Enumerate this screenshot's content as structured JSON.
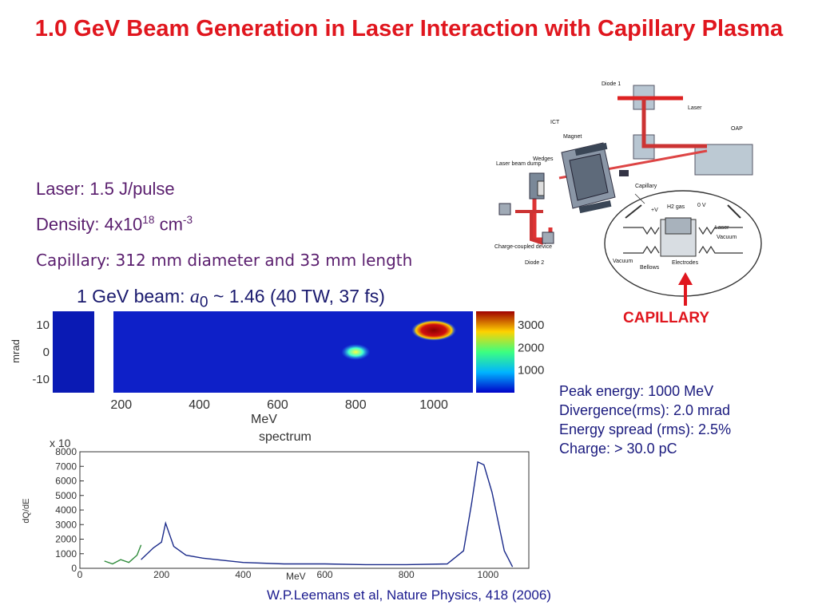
{
  "title": "1.0 GeV Beam Generation in Laser Interaction with Capillary Plasma",
  "params": {
    "laser": "Laser: 1.5 J/pulse",
    "density_prefix": "Density: 4x10",
    "density_exp": "18",
    "density_unit": " cm",
    "density_unit_exp": "-3",
    "capillary": "Capillary: 312 mm diameter and 33 mm length"
  },
  "beam": {
    "prefix": "1 GeV beam: ",
    "symbol": "a",
    "subscript": "0",
    "suffix": " ~ 1.46 (40 TW, 37 fs)"
  },
  "capillary_label": "CAPILLARY",
  "stats": [
    "Peak energy: 1000 MeV",
    "Divergence(rms): 2.0 mrad",
    "Energy spread (rms): 2.5%",
    "Charge: > 30.0 pC"
  ],
  "citation": "W.P.Leemans et al, Nature Physics, 418 (2006)",
  "diagram": {
    "labels": [
      "Diode 1",
      "Laser",
      "OAP",
      "ICT",
      "Magnet",
      "Laser beam dump",
      "Wedges",
      "Capillary",
      "Charge-coupled device",
      "Diode 2",
      "Vacuum",
      "Bellows",
      "Electrodes",
      "+V",
      "H2 gas",
      "0 V"
    ]
  },
  "chart_data": [
    {
      "type": "heatmap",
      "title": "",
      "xlabel": "MeV",
      "ylabel": "mrad",
      "x_ticks": [
        200,
        400,
        600,
        800,
        1000
      ],
      "y_ticks": [
        10,
        0,
        -10
      ],
      "colorbar_ticks": [
        3000,
        2000,
        1000
      ],
      "xlim": [
        180,
        1100
      ],
      "ylim": [
        -15,
        15
      ],
      "spots": [
        {
          "x": 1000,
          "y": 8,
          "intensity": 3500
        },
        {
          "x": 800,
          "y": 0,
          "intensity": 2200
        }
      ]
    },
    {
      "type": "line",
      "title": "spectrum",
      "xlabel": "MeV",
      "ylabel": "dQ/dE",
      "y_multiplier_label": "x 10",
      "x_ticks": [
        0,
        200,
        400,
        600,
        800,
        1000
      ],
      "y_ticks": [
        0,
        1000,
        2000,
        3000,
        4000,
        5000,
        6000,
        7000,
        8000
      ],
      "xlim": [
        0,
        1100
      ],
      "ylim": [
        0,
        8000
      ],
      "series": [
        {
          "color": "#2e8b3a",
          "x": [
            60,
            80,
            100,
            120,
            140,
            150
          ],
          "y": [
            500,
            300,
            600,
            400,
            900,
            1600
          ]
        },
        {
          "color": "#1a2a8a",
          "x": [
            150,
            180,
            200,
            210,
            230,
            260,
            300,
            400,
            500,
            600,
            700,
            800,
            900,
            940,
            960,
            975,
            990,
            1010,
            1040,
            1060
          ],
          "y": [
            600,
            1400,
            1800,
            3100,
            1500,
            900,
            700,
            400,
            300,
            300,
            250,
            250,
            300,
            1200,
            4500,
            7300,
            7100,
            5200,
            1200,
            100
          ]
        }
      ]
    }
  ]
}
